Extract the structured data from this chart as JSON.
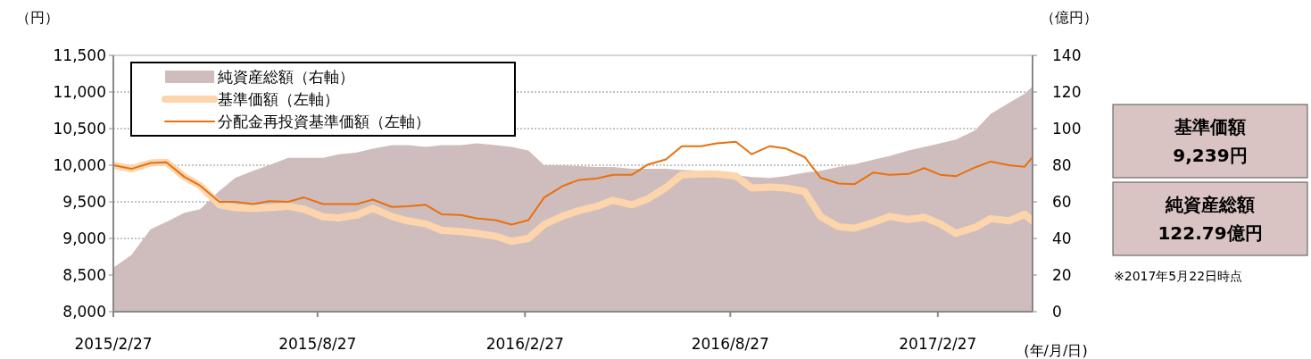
{
  "chart_data": {
    "type": "line",
    "x": [
      "2015-02-27",
      "2015-03-15",
      "2015-04-01",
      "2015-04-15",
      "2015-05-01",
      "2015-05-15",
      "2015-06-01",
      "2015-06-15",
      "2015-07-01",
      "2015-07-15",
      "2015-08-01",
      "2015-08-15",
      "2015-09-01",
      "2015-09-15",
      "2015-10-01",
      "2015-10-15",
      "2015-11-01",
      "2015-11-15",
      "2015-12-01",
      "2015-12-15",
      "2016-01-01",
      "2016-01-15",
      "2016-02-01",
      "2016-02-15",
      "2016-03-01",
      "2016-03-15",
      "2016-04-01",
      "2016-04-15",
      "2016-05-01",
      "2016-05-15",
      "2016-06-01",
      "2016-06-15",
      "2016-07-01",
      "2016-07-15",
      "2016-08-01",
      "2016-08-15",
      "2016-09-01",
      "2016-09-15",
      "2016-10-01",
      "2016-10-15",
      "2016-11-01",
      "2016-11-15",
      "2016-12-01",
      "2016-12-15",
      "2017-01-01",
      "2017-01-15",
      "2017-02-01",
      "2017-02-15",
      "2017-03-01",
      "2017-03-15",
      "2017-04-01",
      "2017-04-15",
      "2017-05-01",
      "2017-05-15",
      "2017-05-22"
    ],
    "series": [
      {
        "name": "純資産総額（右軸）",
        "type": "area",
        "axis": "y2",
        "color": "#cfbdbd",
        "values": [
          24,
          31,
          45,
          49,
          54,
          56,
          66,
          73,
          77,
          80,
          84,
          84,
          84,
          86,
          87,
          89,
          91,
          91,
          90,
          91,
          91,
          92,
          91,
          90,
          88,
          80,
          80,
          79.5,
          79,
          79,
          78,
          78,
          78,
          77.5,
          77,
          76,
          74.5,
          73.5,
          73,
          74,
          76,
          77,
          79,
          80.5,
          83,
          85,
          88,
          90,
          92,
          94,
          99,
          108,
          114,
          119,
          123
        ]
      },
      {
        "name": "基準価額（左軸）",
        "type": "line",
        "axis": "y",
        "color": "#fcd5ac",
        "values": [
          10000,
          9950,
          10030,
          10040,
          9840,
          9720,
          9460,
          9420,
          9410,
          9420,
          9440,
          9400,
          9295,
          9280,
          9320,
          9410,
          9300,
          9240,
          9200,
          9110,
          9095,
          9070,
          9030,
          8960,
          9000,
          9190,
          9310,
          9380,
          9440,
          9520,
          9460,
          9540,
          9695,
          9870,
          9880,
          9880,
          9850,
          9690,
          9700,
          9690,
          9640,
          9300,
          9160,
          9140,
          9220,
          9300,
          9260,
          9290,
          9200,
          9070,
          9150,
          9270,
          9240,
          9330,
          9240
        ]
      },
      {
        "name": "分配金再投資基準価額（左軸）",
        "type": "line",
        "axis": "y",
        "color": "#e8700e",
        "values": [
          10000,
          9950,
          10030,
          10040,
          9840,
          9720,
          9500,
          9500,
          9470,
          9510,
          9500,
          9560,
          9470,
          9470,
          9470,
          9530,
          9430,
          9440,
          9460,
          9330,
          9320,
          9275,
          9250,
          9190,
          9250,
          9560,
          9720,
          9800,
          9820,
          9870,
          9870,
          10010,
          10080,
          10260,
          10260,
          10300,
          10320,
          10150,
          10260,
          10230,
          10110,
          9830,
          9750,
          9740,
          9900,
          9870,
          9880,
          9960,
          9870,
          9850,
          9970,
          10050,
          10000,
          9980,
          10110
        ]
      }
    ],
    "xlim": [
      "2015-02-27",
      "2017-05-22"
    ],
    "xticks": [
      {
        "value": "2015-02-27",
        "label": "2015/2/27"
      },
      {
        "value": "2015-08-27",
        "label": "2015/8/27"
      },
      {
        "value": "2016-02-27",
        "label": "2016/2/27"
      },
      {
        "value": "2016-08-27",
        "label": "2016/8/27"
      },
      {
        "value": "2017-02-27",
        "label": "2017/2/27"
      }
    ],
    "ylim": [
      8000,
      11500
    ],
    "yticks": [
      {
        "value": 8000,
        "label": "8,000"
      },
      {
        "value": 8500,
        "label": "8,500"
      },
      {
        "value": 9000,
        "label": "9,000"
      },
      {
        "value": 9500,
        "label": "9,500"
      },
      {
        "value": 10000,
        "label": "10,000"
      },
      {
        "value": 10500,
        "label": "10,500"
      },
      {
        "value": 11000,
        "label": "11,000"
      },
      {
        "value": 11500,
        "label": "11,500"
      }
    ],
    "y2lim": [
      0,
      140
    ],
    "y2ticks": [
      0,
      20,
      40,
      60,
      80,
      100,
      120,
      140
    ],
    "ylabel": "（円）",
    "y2label": "（億円）",
    "xlabel": "(年/月/日)",
    "grid": "y",
    "legend": "top left",
    "annotations": [
      "基準価額",
      "9,239円",
      "純資産総額",
      "122.79億円",
      "※2017年5月22日時点"
    ]
  }
}
